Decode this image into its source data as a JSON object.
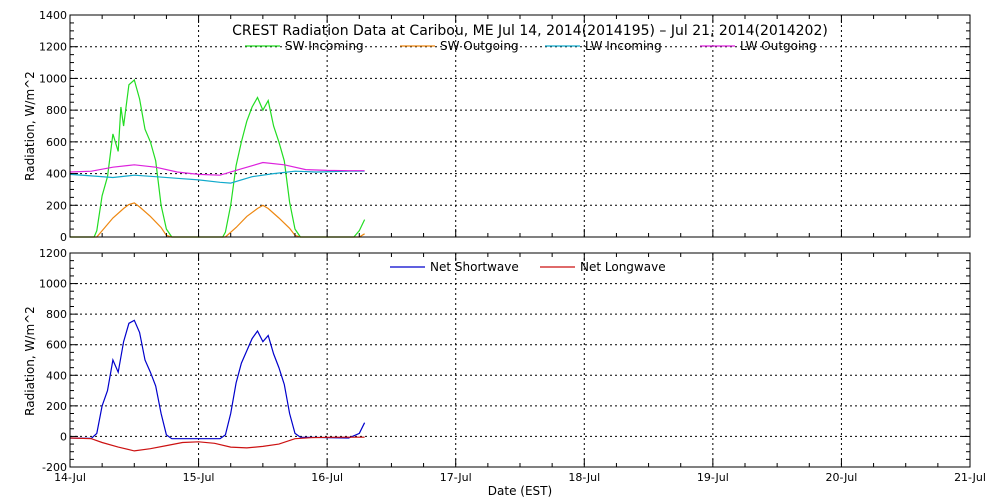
{
  "chart_data": [
    {
      "type": "line",
      "title": "CREST Radiation Data at Caribou, ME   Jul 14, 2014(2014195) – Jul 21, 2014(2014202)",
      "xlabel": "",
      "ylabel": "Radiation, W/m^2",
      "x_unit": "days",
      "x_ticks": [
        "14-Jul",
        "15-Jul",
        "16-Jul",
        "17-Jul",
        "18-Jul",
        "19-Jul",
        "20-Jul",
        "21-Jul"
      ],
      "xlim": [
        "2014-07-14",
        "2014-07-21"
      ],
      "ylim": [
        0,
        1400
      ],
      "yticks": [
        0,
        200,
        400,
        600,
        800,
        1000,
        1200,
        1400
      ],
      "grid": true,
      "legend_placement": "top-center",
      "series": [
        {
          "name": "SW Incoming",
          "color": "#22dd22",
          "points": [
            [
              "2014-07-14 00:00",
              0
            ],
            [
              "2014-07-14 04:30",
              0
            ],
            [
              "2014-07-14 05:00",
              40
            ],
            [
              "2014-07-14 06:00",
              260
            ],
            [
              "2014-07-14 07:00",
              380
            ],
            [
              "2014-07-14 08:00",
              650
            ],
            [
              "2014-07-14 09:00",
              540
            ],
            [
              "2014-07-14 09:30",
              820
            ],
            [
              "2014-07-14 10:00",
              700
            ],
            [
              "2014-07-14 11:00",
              960
            ],
            [
              "2014-07-14 12:00",
              990
            ],
            [
              "2014-07-14 13:00",
              870
            ],
            [
              "2014-07-14 14:00",
              680
            ],
            [
              "2014-07-14 15:00",
              600
            ],
            [
              "2014-07-14 16:00",
              480
            ],
            [
              "2014-07-14 17:00",
              200
            ],
            [
              "2014-07-14 18:00",
              50
            ],
            [
              "2014-07-14 19:00",
              0
            ],
            [
              "2014-07-15 04:30",
              0
            ],
            [
              "2014-07-15 05:00",
              30
            ],
            [
              "2014-07-15 06:00",
              200
            ],
            [
              "2014-07-15 07:00",
              450
            ],
            [
              "2014-07-15 08:00",
              600
            ],
            [
              "2014-07-15 09:00",
              730
            ],
            [
              "2014-07-15 10:00",
              820
            ],
            [
              "2014-07-15 11:00",
              880
            ],
            [
              "2014-07-15 12:00",
              800
            ],
            [
              "2014-07-15 13:00",
              860
            ],
            [
              "2014-07-15 14:00",
              700
            ],
            [
              "2014-07-15 15:00",
              600
            ],
            [
              "2014-07-15 16:00",
              480
            ],
            [
              "2014-07-15 17:00",
              220
            ],
            [
              "2014-07-15 18:00",
              50
            ],
            [
              "2014-07-15 19:00",
              0
            ],
            [
              "2014-07-16 05:00",
              0
            ],
            [
              "2014-07-16 06:00",
              40
            ],
            [
              "2014-07-16 07:00",
              110
            ]
          ]
        },
        {
          "name": "SW Outgoing",
          "color": "#ee8811",
          "points": [
            [
              "2014-07-14 00:00",
              0
            ],
            [
              "2014-07-14 05:00",
              0
            ],
            [
              "2014-07-14 06:00",
              40
            ],
            [
              "2014-07-14 08:00",
              120
            ],
            [
              "2014-07-14 10:00",
              180
            ],
            [
              "2014-07-14 11:00",
              205
            ],
            [
              "2014-07-14 12:00",
              215
            ],
            [
              "2014-07-14 13:00",
              190
            ],
            [
              "2014-07-14 15:00",
              130
            ],
            [
              "2014-07-14 17:00",
              60
            ],
            [
              "2014-07-14 18:00",
              10
            ],
            [
              "2014-07-14 19:00",
              0
            ],
            [
              "2014-07-15 05:00",
              0
            ],
            [
              "2014-07-15 07:00",
              60
            ],
            [
              "2014-07-15 09:00",
              130
            ],
            [
              "2014-07-15 11:00",
              180
            ],
            [
              "2014-07-15 12:00",
              200
            ],
            [
              "2014-07-15 13:00",
              180
            ],
            [
              "2014-07-15 15:00",
              120
            ],
            [
              "2014-07-15 17:00",
              55
            ],
            [
              "2014-07-15 18:00",
              10
            ],
            [
              "2014-07-15 19:00",
              0
            ],
            [
              "2014-07-16 06:00",
              0
            ],
            [
              "2014-07-16 07:00",
              20
            ]
          ]
        },
        {
          "name": "LW Incoming",
          "color": "#11aacc",
          "points": [
            [
              "2014-07-14 00:00",
              395
            ],
            [
              "2014-07-14 04:00",
              385
            ],
            [
              "2014-07-14 08:00",
              375
            ],
            [
              "2014-07-14 12:00",
              390
            ],
            [
              "2014-07-14 16:00",
              380
            ],
            [
              "2014-07-14 20:00",
              370
            ],
            [
              "2014-07-15 00:00",
              360
            ],
            [
              "2014-07-15 04:00",
              345
            ],
            [
              "2014-07-15 06:00",
              340
            ],
            [
              "2014-07-15 10:00",
              380
            ],
            [
              "2014-07-15 14:00",
              400
            ],
            [
              "2014-07-15 18:00",
              415
            ],
            [
              "2014-07-15 22:00",
              410
            ],
            [
              "2014-07-16 04:00",
              415
            ],
            [
              "2014-07-16 07:00",
              415
            ]
          ]
        },
        {
          "name": "LW Outgoing",
          "color": "#dd22dd",
          "points": [
            [
              "2014-07-14 00:00",
              410
            ],
            [
              "2014-07-14 04:00",
              415
            ],
            [
              "2014-07-14 08:00",
              440
            ],
            [
              "2014-07-14 12:00",
              455
            ],
            [
              "2014-07-14 16:00",
              440
            ],
            [
              "2014-07-14 20:00",
              410
            ],
            [
              "2014-07-15 00:00",
              395
            ],
            [
              "2014-07-15 04:00",
              390
            ],
            [
              "2014-07-15 08:00",
              430
            ],
            [
              "2014-07-15 12:00",
              470
            ],
            [
              "2014-07-15 16:00",
              455
            ],
            [
              "2014-07-15 20:00",
              425
            ],
            [
              "2014-07-16 00:00",
              420
            ],
            [
              "2014-07-16 04:00",
              418
            ],
            [
              "2014-07-16 07:00",
              418
            ]
          ]
        }
      ]
    },
    {
      "type": "line",
      "title": "",
      "xlabel": "Date (EST)",
      "ylabel": "Radiation, W/m^2",
      "x_unit": "days",
      "x_ticks": [
        "14-Jul",
        "15-Jul",
        "16-Jul",
        "17-Jul",
        "18-Jul",
        "19-Jul",
        "20-Jul",
        "21-Jul"
      ],
      "xlim": [
        "2014-07-14",
        "2014-07-21"
      ],
      "ylim": [
        -200,
        1200
      ],
      "yticks": [
        -200,
        0,
        200,
        400,
        600,
        800,
        1000,
        1200
      ],
      "grid": true,
      "legend_placement": "top-center",
      "series": [
        {
          "name": "Net Shortwave",
          "color": "#0000cc",
          "points": [
            [
              "2014-07-14 00:00",
              -10
            ],
            [
              "2014-07-14 04:00",
              -12
            ],
            [
              "2014-07-14 05:00",
              20
            ],
            [
              "2014-07-14 06:00",
              200
            ],
            [
              "2014-07-14 07:00",
              300
            ],
            [
              "2014-07-14 08:00",
              500
            ],
            [
              "2014-07-14 09:00",
              420
            ],
            [
              "2014-07-14 10:00",
              620
            ],
            [
              "2014-07-14 11:00",
              740
            ],
            [
              "2014-07-14 12:00",
              760
            ],
            [
              "2014-07-14 13:00",
              680
            ],
            [
              "2014-07-14 14:00",
              500
            ],
            [
              "2014-07-14 15:00",
              420
            ],
            [
              "2014-07-14 16:00",
              330
            ],
            [
              "2014-07-14 17:00",
              150
            ],
            [
              "2014-07-14 18:00",
              10
            ],
            [
              "2014-07-14 19:00",
              -15
            ],
            [
              "2014-07-15 04:00",
              -15
            ],
            [
              "2014-07-15 05:00",
              10
            ],
            [
              "2014-07-15 06:00",
              150
            ],
            [
              "2014-07-15 07:00",
              350
            ],
            [
              "2014-07-15 08:00",
              480
            ],
            [
              "2014-07-15 09:00",
              560
            ],
            [
              "2014-07-15 10:00",
              640
            ],
            [
              "2014-07-15 11:00",
              690
            ],
            [
              "2014-07-15 12:00",
              620
            ],
            [
              "2014-07-15 13:00",
              660
            ],
            [
              "2014-07-15 14:00",
              540
            ],
            [
              "2014-07-15 15:00",
              450
            ],
            [
              "2014-07-15 16:00",
              340
            ],
            [
              "2014-07-15 17:00",
              150
            ],
            [
              "2014-07-15 18:00",
              20
            ],
            [
              "2014-07-15 19:00",
              -5
            ],
            [
              "2014-07-16 04:00",
              -10
            ],
            [
              "2014-07-16 06:00",
              20
            ],
            [
              "2014-07-16 07:00",
              90
            ]
          ]
        },
        {
          "name": "Net Longwave",
          "color": "#cc1111",
          "points": [
            [
              "2014-07-14 00:00",
              -10
            ],
            [
              "2014-07-14 04:00",
              -15
            ],
            [
              "2014-07-14 06:00",
              -40
            ],
            [
              "2014-07-14 09:00",
              -70
            ],
            [
              "2014-07-14 12:00",
              -95
            ],
            [
              "2014-07-14 15:00",
              -80
            ],
            [
              "2014-07-14 18:00",
              -60
            ],
            [
              "2014-07-14 21:00",
              -40
            ],
            [
              "2014-07-15 00:00",
              -35
            ],
            [
              "2014-07-15 03:00",
              -45
            ],
            [
              "2014-07-15 06:00",
              -70
            ],
            [
              "2014-07-15 09:00",
              -75
            ],
            [
              "2014-07-15 12:00",
              -65
            ],
            [
              "2014-07-15 15:00",
              -50
            ],
            [
              "2014-07-15 18:00",
              -15
            ],
            [
              "2014-07-15 21:00",
              -8
            ],
            [
              "2014-07-16 00:00",
              -6
            ],
            [
              "2014-07-16 04:00",
              -5
            ],
            [
              "2014-07-16 07:00",
              -5
            ]
          ]
        }
      ]
    }
  ]
}
